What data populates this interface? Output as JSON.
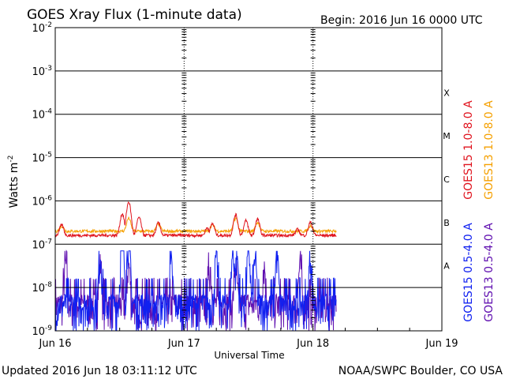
{
  "chart_data": {
    "type": "line",
    "title": "GOES Xray Flux (1-minute data)",
    "begin_label": "Begin:  2016 Jun 16 0000 UTC",
    "ylabel": "Watts m",
    "ylabel_sup": "-2",
    "xlabel": "Universal Time",
    "y_scale": "log",
    "ylim": [
      1e-09,
      0.01
    ],
    "y_ticks": [
      {
        "base": "10",
        "exp": "-2"
      },
      {
        "base": "10",
        "exp": "-3"
      },
      {
        "base": "10",
        "exp": "-4"
      },
      {
        "base": "10",
        "exp": "-5"
      },
      {
        "base": "10",
        "exp": "-6"
      },
      {
        "base": "10",
        "exp": "-7"
      },
      {
        "base": "10",
        "exp": "-8"
      },
      {
        "base": "10",
        "exp": "-9"
      }
    ],
    "flare_classes": [
      "X",
      "M",
      "C",
      "B",
      "A"
    ],
    "x_ticks": [
      "Jun 16",
      "Jun 17",
      "Jun 18",
      "Jun 19"
    ],
    "x_range_days": [
      0,
      3
    ],
    "data_end_day": 2.18,
    "grid": true,
    "legend_position": "right",
    "series": [
      {
        "name": "GOES15 1.0-8.0 A",
        "color": "#e0141e",
        "base": 1.6e-07,
        "peaks": [
          [
            0.05,
            2.8e-07
          ],
          [
            0.52,
            5e-07
          ],
          [
            0.57,
            9.5e-07
          ],
          [
            0.65,
            4.2e-07
          ],
          [
            0.8,
            3.1e-07
          ],
          [
            1.18,
            2.4e-07
          ],
          [
            1.22,
            3e-07
          ],
          [
            1.4,
            4.8e-07
          ],
          [
            1.48,
            3.5e-07
          ],
          [
            1.57,
            3.8e-07
          ],
          [
            1.88,
            2.2e-07
          ],
          [
            1.98,
            3.2e-07
          ]
        ]
      },
      {
        "name": "GOES13 1.0-8.0 A",
        "color": "#f5a000",
        "base": 2e-07,
        "peaks": [
          [
            0.05,
            2.6e-07
          ],
          [
            0.57,
            4e-07
          ],
          [
            0.8,
            2.9e-07
          ],
          [
            1.22,
            2.8e-07
          ],
          [
            1.4,
            4e-07
          ],
          [
            1.57,
            3.2e-07
          ],
          [
            1.98,
            2.7e-07
          ]
        ]
      },
      {
        "name": "GOES15 0.5-4.0 A",
        "color": "#1020f0",
        "base": 1.5e-09,
        "peaks": [
          [
            0.35,
            2e-08
          ],
          [
            0.52,
            6.5e-08
          ],
          [
            0.57,
            5.5e-08
          ],
          [
            0.9,
            1.2e-08
          ],
          [
            1.25,
            1.8e-08
          ],
          [
            1.38,
            2.5e-08
          ],
          [
            1.41,
            1.8e-08
          ],
          [
            1.5,
            2.5e-08
          ],
          [
            1.55,
            1.6e-08
          ],
          [
            1.72,
            2.1e-08
          ],
          [
            1.98,
            1.8e-08
          ]
        ]
      },
      {
        "name": "GOES13 0.5-4.0 A",
        "color": "#6010b0",
        "base": 1.5e-09,
        "peaks": [
          [
            0.08,
            1.2e-08
          ],
          [
            0.35,
            1.3e-08
          ],
          [
            0.57,
            1.2e-08
          ],
          [
            1.2,
            1.1e-08
          ],
          [
            1.4,
            1.2e-08
          ],
          [
            1.62,
            1.2e-08
          ],
          [
            1.9,
            1.2e-08
          ]
        ]
      }
    ]
  },
  "footer": {
    "updated": "Updated 2016 Jun 18 03:11:12 UTC",
    "credit": "NOAA/SWPC Boulder, CO USA"
  }
}
